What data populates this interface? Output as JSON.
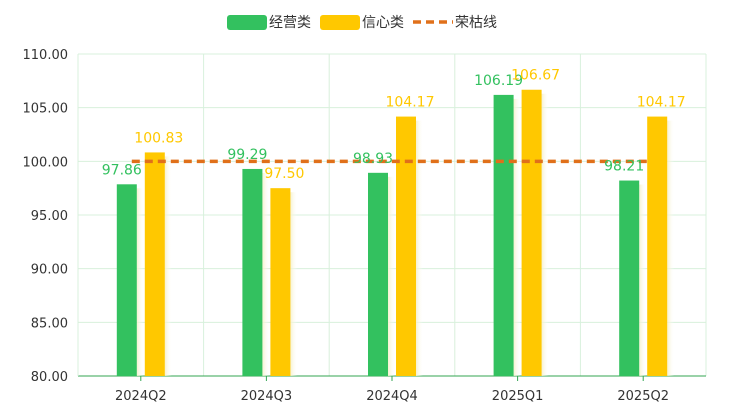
{
  "chart_data": {
    "type": "bar",
    "categories": [
      "2024Q2",
      "2024Q3",
      "2024Q4",
      "2025Q1",
      "2025Q2"
    ],
    "series": [
      {
        "name": "经营类",
        "color": "#33c15f",
        "values": [
          97.86,
          99.29,
          98.93,
          106.19,
          98.21
        ],
        "labels": [
          "97.86",
          "99.29",
          "98.93",
          "106.19",
          "98.21"
        ]
      },
      {
        "name": "信心类",
        "color": "#ffc800",
        "values": [
          100.83,
          97.5,
          104.17,
          106.67,
          104.17
        ],
        "labels": [
          "100.83",
          "97.50",
          "104.17",
          "106.67",
          "104.17"
        ]
      }
    ],
    "reference_line": {
      "name": "荣枯线",
      "value": 100,
      "color": "#e0701a",
      "style": "dashed"
    },
    "ylim": [
      80,
      110
    ],
    "yticks": [
      "80.00",
      "85.00",
      "90.00",
      "95.00",
      "100.00",
      "105.00",
      "110.00"
    ],
    "grid": true,
    "legend_position": "top-center",
    "title": "",
    "xlabel": "",
    "ylabel": ""
  }
}
